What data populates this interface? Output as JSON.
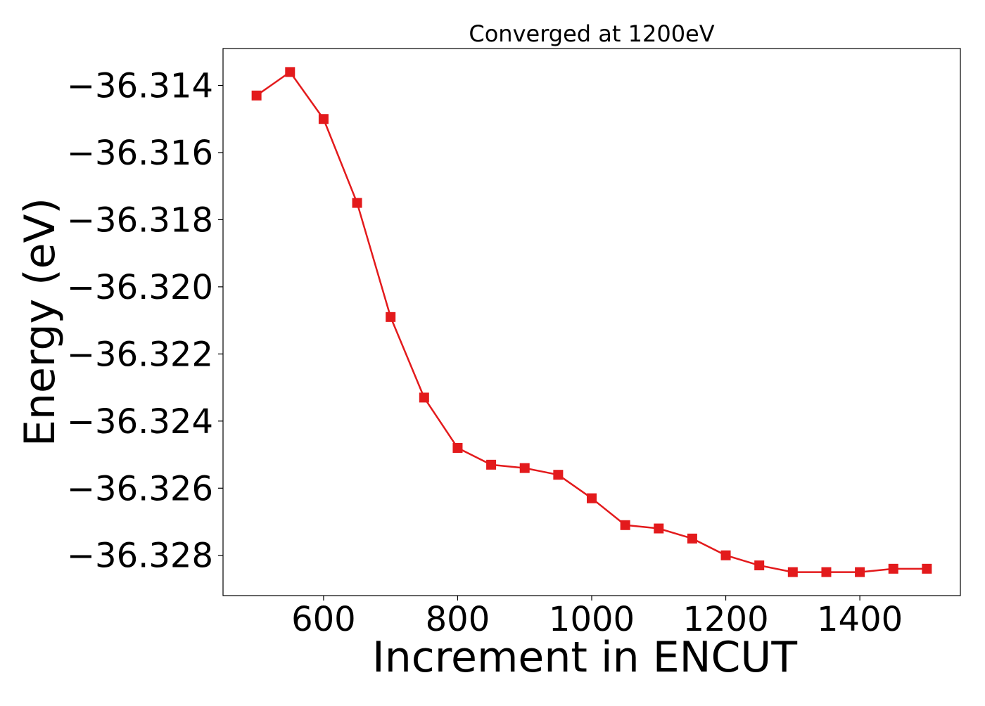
{
  "chart_data": {
    "type": "line",
    "title": "Converged at 1200eV",
    "xlabel": "Increment in ENCUT",
    "ylabel": "Energy (eV)",
    "xlim": [
      450,
      1550
    ],
    "ylim": [
      -36.3292,
      -36.3129
    ],
    "xticks": [
      600,
      800,
      1000,
      1200,
      1400
    ],
    "xtick_labels": [
      "600",
      "800",
      "1000",
      "1200",
      "1400"
    ],
    "yticks": [
      -36.314,
      -36.316,
      -36.318,
      -36.32,
      -36.322,
      -36.324,
      -36.326,
      -36.328
    ],
    "ytick_labels": [
      "−36.314",
      "−36.316",
      "−36.318",
      "−36.320",
      "−36.322",
      "−36.324",
      "−36.326",
      "−36.328"
    ],
    "grid": false,
    "series": [
      {
        "color": "#e31a1c",
        "marker": "square",
        "x": [
          500,
          550,
          600,
          650,
          700,
          750,
          800,
          850,
          900,
          950,
          1000,
          1050,
          1100,
          1150,
          1200,
          1250,
          1300,
          1350,
          1400,
          1450,
          1500
        ],
        "y": [
          -36.3143,
          -36.3136,
          -36.315,
          -36.3175,
          -36.3209,
          -36.3233,
          -36.3248,
          -36.3253,
          -36.3254,
          -36.3256,
          -36.3263,
          -36.3271,
          -36.3272,
          -36.3275,
          -36.328,
          -36.3283,
          -36.3285,
          -36.3285,
          -36.3285,
          -36.3284,
          -36.3284
        ]
      }
    ]
  }
}
